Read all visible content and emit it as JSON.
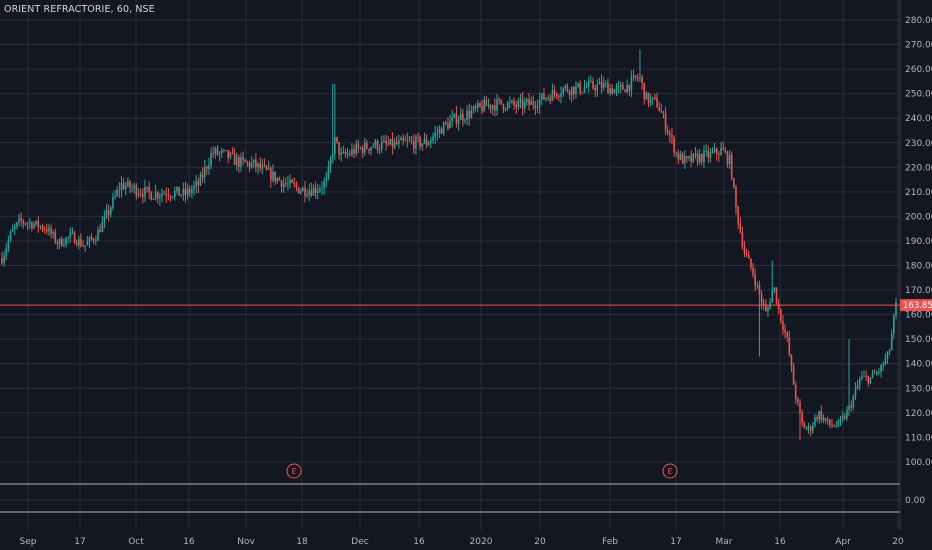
{
  "title": {
    "symbol": "ORIENT REFRACTORIE",
    "interval": "60",
    "exchange": "NSE",
    "sep": ", "
  },
  "colors": {
    "background": "#131722",
    "grid": "#2a2e39",
    "up": "#26a69a",
    "down": "#ef5350",
    "axis_text": "#b2b5be",
    "price_line": "#ef5350",
    "panel_line": "#b2b5be"
  },
  "chart_data": {
    "type": "candlestick",
    "y_axis": {
      "min": 0,
      "max": 280,
      "ticks": [
        "280.00",
        "270.00",
        "260.00",
        "250.00",
        "240.00",
        "230.00",
        "220.00",
        "210.00",
        "200.00",
        "190.00",
        "180.00",
        "170.00",
        "160.00",
        "150.00",
        "140.00",
        "130.00",
        "120.00",
        "110.00",
        "100.00",
        "0.00"
      ]
    },
    "x_axis": {
      "ticks": [
        "Sep",
        "17",
        "Oct",
        "16",
        "Nov",
        "18",
        "Dec",
        "16",
        "2020",
        "20",
        "Feb",
        "17",
        "Mar",
        "16",
        "Apr",
        "20"
      ]
    },
    "last_price": "163.85",
    "earnings_markers": [
      {
        "label": "E",
        "near": "Nov 18"
      },
      {
        "label": "E",
        "near": "Feb 17"
      }
    ],
    "price_path": [
      {
        "t": 0.0,
        "p": 183
      },
      {
        "t": 0.01,
        "p": 193
      },
      {
        "t": 0.02,
        "p": 198
      },
      {
        "t": 0.035,
        "p": 197
      },
      {
        "t": 0.05,
        "p": 195
      },
      {
        "t": 0.063,
        "p": 189
      },
      {
        "t": 0.078,
        "p": 192
      },
      {
        "t": 0.092,
        "p": 188
      },
      {
        "t": 0.105,
        "p": 192
      },
      {
        "t": 0.118,
        "p": 201
      },
      {
        "t": 0.133,
        "p": 213
      },
      {
        "t": 0.15,
        "p": 211
      },
      {
        "t": 0.168,
        "p": 209
      },
      {
        "t": 0.185,
        "p": 210
      },
      {
        "t": 0.205,
        "p": 209
      },
      {
        "t": 0.22,
        "p": 213
      },
      {
        "t": 0.235,
        "p": 226
      },
      {
        "t": 0.25,
        "p": 225
      },
      {
        "t": 0.265,
        "p": 222
      },
      {
        "t": 0.282,
        "p": 221
      },
      {
        "t": 0.3,
        "p": 217
      },
      {
        "t": 0.318,
        "p": 213
      },
      {
        "t": 0.335,
        "p": 211
      },
      {
        "t": 0.35,
        "p": 211
      },
      {
        "t": 0.363,
        "p": 214
      },
      {
        "t": 0.372,
        "p": 231
      },
      {
        "t": 0.38,
        "p": 224
      },
      {
        "t": 0.395,
        "p": 227
      },
      {
        "t": 0.415,
        "p": 229
      },
      {
        "t": 0.435,
        "p": 229
      },
      {
        "t": 0.455,
        "p": 230
      },
      {
        "t": 0.475,
        "p": 230
      },
      {
        "t": 0.492,
        "p": 236
      },
      {
        "t": 0.508,
        "p": 240
      },
      {
        "t": 0.523,
        "p": 242
      },
      {
        "t": 0.54,
        "p": 245
      },
      {
        "t": 0.558,
        "p": 246
      },
      {
        "t": 0.575,
        "p": 245
      },
      {
        "t": 0.593,
        "p": 246
      },
      {
        "t": 0.61,
        "p": 249
      },
      {
        "t": 0.628,
        "p": 252
      },
      {
        "t": 0.645,
        "p": 252
      },
      {
        "t": 0.66,
        "p": 253
      },
      {
        "t": 0.675,
        "p": 253
      },
      {
        "t": 0.688,
        "p": 251
      },
      {
        "t": 0.703,
        "p": 254
      },
      {
        "t": 0.713,
        "p": 257
      },
      {
        "t": 0.72,
        "p": 248
      },
      {
        "t": 0.733,
        "p": 246
      },
      {
        "t": 0.745,
        "p": 235
      },
      {
        "t": 0.755,
        "p": 225
      },
      {
        "t": 0.765,
        "p": 222
      },
      {
        "t": 0.778,
        "p": 224
      },
      {
        "t": 0.793,
        "p": 225
      },
      {
        "t": 0.805,
        "p": 227
      },
      {
        "t": 0.815,
        "p": 222
      },
      {
        "t": 0.82,
        "p": 205
      },
      {
        "t": 0.83,
        "p": 186
      },
      {
        "t": 0.84,
        "p": 177
      },
      {
        "t": 0.848,
        "p": 167
      },
      {
        "t": 0.855,
        "p": 160
      },
      {
        "t": 0.863,
        "p": 172
      },
      {
        "t": 0.87,
        "p": 160
      },
      {
        "t": 0.878,
        "p": 150
      },
      {
        "t": 0.887,
        "p": 128
      },
      {
        "t": 0.895,
        "p": 115
      },
      {
        "t": 0.903,
        "p": 113
      },
      {
        "t": 0.913,
        "p": 120
      },
      {
        "t": 0.925,
        "p": 115
      },
      {
        "t": 0.937,
        "p": 115
      },
      {
        "t": 0.948,
        "p": 122
      },
      {
        "t": 0.96,
        "p": 134
      },
      {
        "t": 0.972,
        "p": 134
      },
      {
        "t": 0.983,
        "p": 138
      },
      {
        "t": 0.992,
        "p": 144
      },
      {
        "t": 1.0,
        "p": 163.85
      }
    ],
    "spikes": [
      {
        "t": 0.371,
        "high": 254
      },
      {
        "t": 0.713,
        "high": 268
      },
      {
        "t": 0.862,
        "high": 182
      },
      {
        "t": 0.948,
        "high": 150
      },
      {
        "t": 0.893,
        "low": 109
      },
      {
        "t": 0.847,
        "low": 143
      }
    ]
  }
}
